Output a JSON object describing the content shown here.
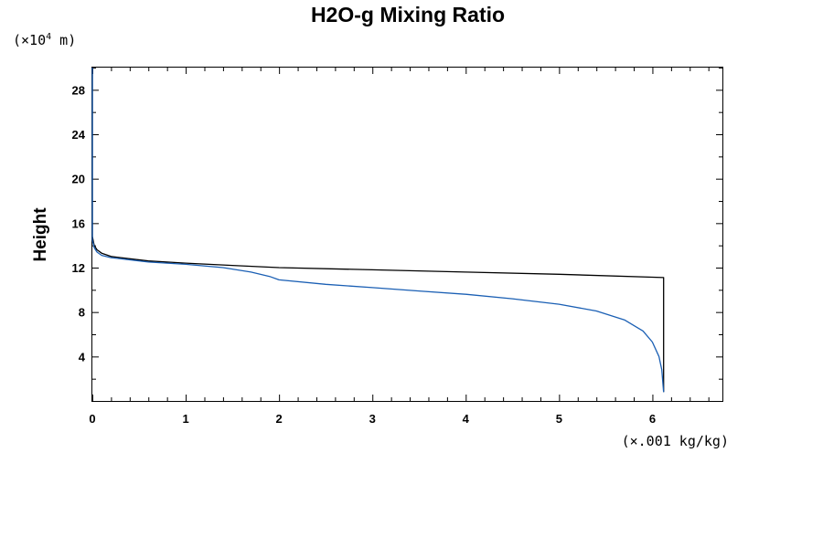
{
  "chart_data": {
    "type": "line",
    "title": "H2O-g Mixing Ratio",
    "ylabel": "Height",
    "y_unit_prefix": "(×10",
    "y_unit_exp": "4",
    "y_unit_suffix": " m)",
    "x_unit": "(×.001 kg/kg)",
    "xlim": [
      0,
      6.75
    ],
    "ylim": [
      0,
      30
    ],
    "xticks": [
      0,
      1,
      2,
      3,
      4,
      5,
      6
    ],
    "yticks": [
      4,
      8,
      12,
      16,
      20,
      24,
      28
    ],
    "series": [
      {
        "color": "#000000",
        "x": [
          0,
          0,
          0.02,
          0.05,
          0.1,
          0.2,
          0.4,
          0.6,
          1.0,
          1.5,
          2.0,
          3.0,
          4.0,
          5.0,
          6.12,
          6.12
        ],
        "y": [
          30,
          14.8,
          14.0,
          13.6,
          13.3,
          13.0,
          12.8,
          12.6,
          12.4,
          12.2,
          12.0,
          11.8,
          11.6,
          11.4,
          11.1,
          0.8
        ]
      },
      {
        "color": "#1a5fb4",
        "x": [
          0,
          0,
          0.02,
          0.05,
          0.1,
          0.2,
          0.4,
          0.6,
          1.0,
          1.4,
          1.7,
          1.9,
          2.0,
          2.5,
          3.0,
          3.5,
          4.0,
          4.5,
          5.0,
          5.4,
          5.7,
          5.9,
          6.0,
          6.07,
          6.1,
          6.12
        ],
        "y": [
          30,
          14.5,
          13.8,
          13.4,
          13.1,
          12.9,
          12.7,
          12.5,
          12.3,
          12.0,
          11.6,
          11.2,
          10.9,
          10.5,
          10.2,
          9.9,
          9.6,
          9.2,
          8.7,
          8.1,
          7.3,
          6.3,
          5.3,
          4.0,
          2.8,
          0.8
        ]
      }
    ]
  }
}
